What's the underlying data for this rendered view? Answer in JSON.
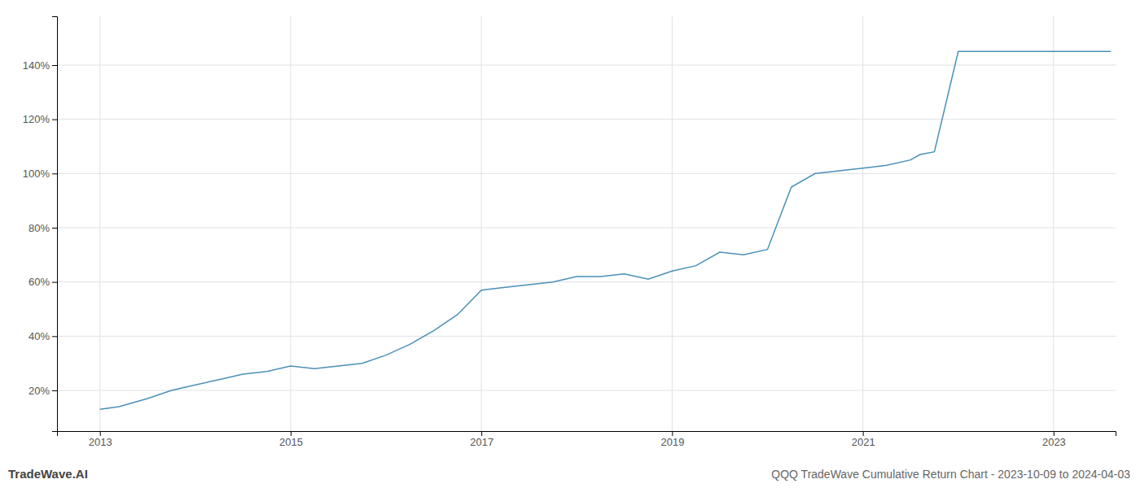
{
  "chart_data": {
    "type": "line",
    "title": "QQQ TradeWave Cumulative Return Chart - 2023-10-09 to 2024-04-03",
    "annotations": [
      "TradeWave.AI"
    ],
    "color": "#4a90b8",
    "grid": true,
    "x": [
      2013.0,
      2013.2,
      2013.5,
      2013.75,
      2014.0,
      2014.25,
      2014.5,
      2014.75,
      2015.0,
      2015.25,
      2015.5,
      2015.75,
      2016.0,
      2016.25,
      2016.5,
      2016.75,
      2017.0,
      2017.25,
      2017.5,
      2017.75,
      2018.0,
      2018.25,
      2018.5,
      2018.75,
      2019.0,
      2019.25,
      2019.5,
      2019.75,
      2020.0,
      2020.25,
      2020.5,
      2020.75,
      2021.0,
      2021.25,
      2021.5,
      2021.6,
      2021.75,
      2022.0,
      2022.1,
      2022.25,
      2022.5,
      2022.75,
      2023.0,
      2023.25,
      2023.5,
      2023.6
    ],
    "values": [
      13,
      14,
      17,
      20,
      22,
      24,
      26,
      27,
      29,
      28,
      29,
      30,
      33,
      37,
      42,
      48,
      57,
      58,
      59,
      60,
      62,
      62,
      63,
      61,
      64,
      66,
      71,
      70,
      72,
      95,
      100,
      101,
      102,
      103,
      105,
      107,
      108,
      145,
      145,
      145,
      145,
      145,
      145,
      145,
      145,
      145
    ],
    "xlim": [
      2012.55,
      2023.65
    ],
    "xticks": [
      2013,
      2015,
      2017,
      2019,
      2021,
      2023
    ],
    "ylim": [
      5,
      158
    ],
    "yticks": [
      {
        "value": 20,
        "label": "20%"
      },
      {
        "value": 40,
        "label": "40%"
      },
      {
        "value": 60,
        "label": "60%"
      },
      {
        "value": 80,
        "label": "80%"
      },
      {
        "value": 100,
        "label": "100%"
      },
      {
        "value": 120,
        "label": "120%"
      },
      {
        "value": 140,
        "label": "140%"
      }
    ]
  }
}
